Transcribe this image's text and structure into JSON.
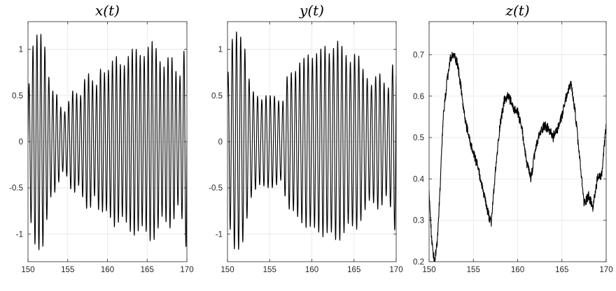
{
  "chart_data": [
    {
      "type": "line",
      "title": "x(t)",
      "xlim": [
        150,
        170
      ],
      "ylim": [
        -1.3,
        1.3
      ],
      "xticks": [
        150,
        155,
        160,
        165,
        170
      ],
      "yticks": [
        -1,
        -0.5,
        0,
        0.5,
        1
      ],
      "ytick_labels": [
        "-1",
        "-0.5",
        "0",
        "0.5",
        "1"
      ],
      "grid": true,
      "signal": {
        "kind": "oscillation",
        "period": 0.5,
        "phase": 0.0,
        "x_start": 150,
        "x_end": 170,
        "amplitude_envelope": {
          "x": [
            150,
            150.5,
            151,
            151.5,
            152,
            152.5,
            153,
            153.5,
            154,
            154.5,
            155,
            155.5,
            156,
            156.5,
            157,
            157.5,
            158,
            158.5,
            159,
            159.5,
            160,
            160.5,
            161,
            161.5,
            162,
            162.5,
            163,
            163.5,
            164,
            164.5,
            165,
            165.5,
            166,
            166.5,
            167,
            167.5,
            168,
            168.5,
            169,
            169.5,
            170
          ],
          "amp": [
            0.5,
            1.0,
            1.15,
            1.18,
            1.12,
            0.75,
            0.55,
            0.55,
            0.4,
            0.3,
            0.4,
            0.55,
            0.55,
            0.45,
            0.65,
            0.75,
            0.7,
            0.55,
            0.8,
            0.75,
            0.75,
            0.85,
            0.95,
            0.85,
            0.8,
            0.9,
            1.0,
            1.02,
            0.95,
            0.9,
            1.0,
            1.1,
            1.05,
            0.9,
            0.78,
            0.9,
            0.95,
            0.8,
            0.65,
            0.9,
            1.22
          ]
        }
      }
    },
    {
      "type": "line",
      "title": "y(t)",
      "xlim": [
        150,
        170
      ],
      "ylim": [
        -1.3,
        1.3
      ],
      "xticks": [
        150,
        155,
        160,
        165,
        170
      ],
      "yticks": [
        -1,
        -0.5,
        0,
        0.5,
        1
      ],
      "ytick_labels": [
        "-1",
        "-0.5",
        "0",
        "0.5",
        "1"
      ],
      "grid": true,
      "signal": {
        "kind": "oscillation",
        "period": 0.5,
        "phase": 0.12,
        "x_start": 150,
        "x_end": 170,
        "amplitude_envelope": {
          "x": [
            150,
            150.5,
            151,
            151.5,
            152,
            152.5,
            153,
            153.5,
            154,
            154.5,
            155,
            155.5,
            156,
            156.5,
            157,
            157.5,
            158,
            158.5,
            159,
            159.5,
            160,
            160.5,
            161,
            161.5,
            162,
            162.5,
            163,
            163.5,
            164,
            164.5,
            165,
            165.5,
            166,
            166.5,
            167,
            167.5,
            168,
            168.5,
            169,
            169.5,
            170
          ],
          "amp": [
            0.7,
            1.1,
            1.2,
            1.15,
            1.05,
            0.7,
            0.55,
            0.5,
            0.45,
            0.5,
            0.5,
            0.5,
            0.45,
            0.4,
            0.7,
            0.75,
            0.75,
            0.85,
            0.9,
            0.95,
            0.9,
            0.95,
            1.0,
            1.05,
            0.95,
            1.0,
            1.1,
            1.05,
            0.95,
            0.85,
            0.95,
            0.95,
            0.8,
            0.7,
            0.6,
            0.7,
            0.75,
            0.65,
            0.55,
            0.8,
            1.05
          ]
        }
      }
    },
    {
      "type": "line",
      "title": "z(t)",
      "xlim": [
        150,
        170
      ],
      "ylim": [
        0.2,
        0.78
      ],
      "xticks": [
        150,
        155,
        160,
        165,
        170
      ],
      "yticks": [
        0.2,
        0.3,
        0.4,
        0.5,
        0.6,
        0.7
      ],
      "ytick_labels": [
        "0.2",
        "0.3",
        "0.4",
        "0.5",
        "0.6",
        "0.7"
      ],
      "grid": true,
      "signal": {
        "kind": "noisy-trend",
        "noise": 0.012,
        "x": [
          150,
          150.3,
          150.6,
          150.9,
          151.2,
          151.6,
          152.0,
          152.4,
          152.8,
          153.2,
          153.6,
          154.0,
          154.5,
          155.0,
          155.5,
          156.0,
          156.5,
          157.0,
          157.5,
          158.0,
          158.5,
          159.0,
          159.5,
          160.0,
          160.5,
          161.0,
          161.5,
          162.0,
          162.5,
          163.0,
          163.5,
          164.0,
          164.5,
          165.0,
          165.5,
          166.0,
          166.5,
          167.0,
          167.5,
          168.0,
          168.5,
          169.0,
          169.5,
          170.0
        ],
        "y": [
          0.37,
          0.25,
          0.2,
          0.24,
          0.36,
          0.55,
          0.63,
          0.69,
          0.7,
          0.68,
          0.62,
          0.55,
          0.5,
          0.46,
          0.43,
          0.38,
          0.33,
          0.29,
          0.42,
          0.53,
          0.59,
          0.6,
          0.57,
          0.56,
          0.52,
          0.44,
          0.4,
          0.47,
          0.51,
          0.53,
          0.52,
          0.5,
          0.52,
          0.55,
          0.6,
          0.63,
          0.56,
          0.45,
          0.34,
          0.36,
          0.33,
          0.4,
          0.41,
          0.53
        ]
      }
    }
  ]
}
